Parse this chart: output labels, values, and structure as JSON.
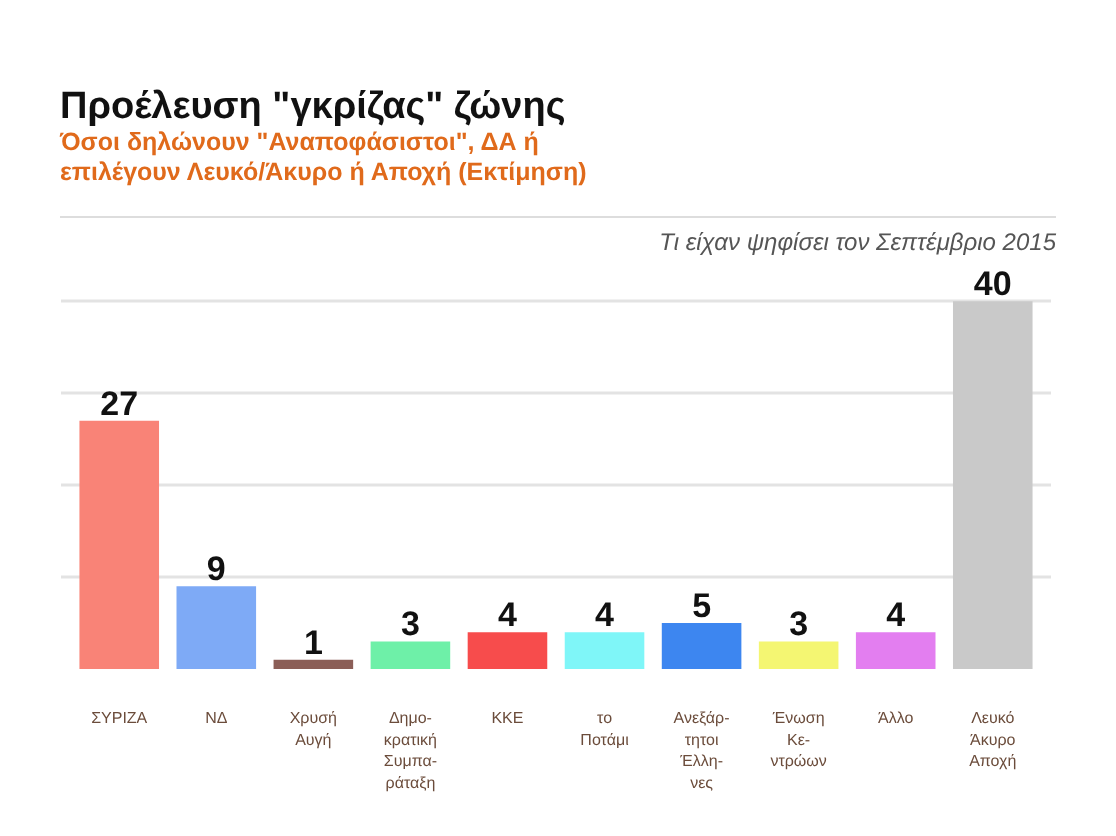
{
  "chart_data": {
    "type": "bar",
    "title": "Προέλευση \"γκρίζας\" ζώνης",
    "subtitle": "Όσοι δηλώνουν \"Αναποφάσιστοι\", ΔΑ ή\nεπιλέγουν Λευκό/Άκυρο ή Αποχή (Εκτίμηση)",
    "annotations": [
      "Τι είχαν ψηφίσει τον Σεπτέμβριο 2015"
    ],
    "categories": [
      "ΣΥΡΙΖΑ",
      "ΝΔ",
      "Χρυσή\nΑυγή",
      "Δημο-\nκρατική\nΣυμπα-\nράταξη",
      "ΚΚΕ",
      "το\nΠοτάμι",
      "Ανεξάρ-\nτητοι\nΈλλη-\nνες",
      "Ένωση\nΚε-\nντρώων",
      "Άλλο",
      "Λευκό\nΆκυρο\nΑποχή"
    ],
    "values": [
      27,
      9,
      1,
      3,
      4,
      4,
      5,
      3,
      4,
      40
    ],
    "colors": [
      "#f98377",
      "#7eaaf6",
      "#8b5e57",
      "#6ef0a8",
      "#f74c4c",
      "#7ff6f8",
      "#3d86f0",
      "#f4f672",
      "#e37ef0",
      "#c9c9c9"
    ],
    "grid": "y",
    "data_labels": true,
    "tick_labels": false
  }
}
